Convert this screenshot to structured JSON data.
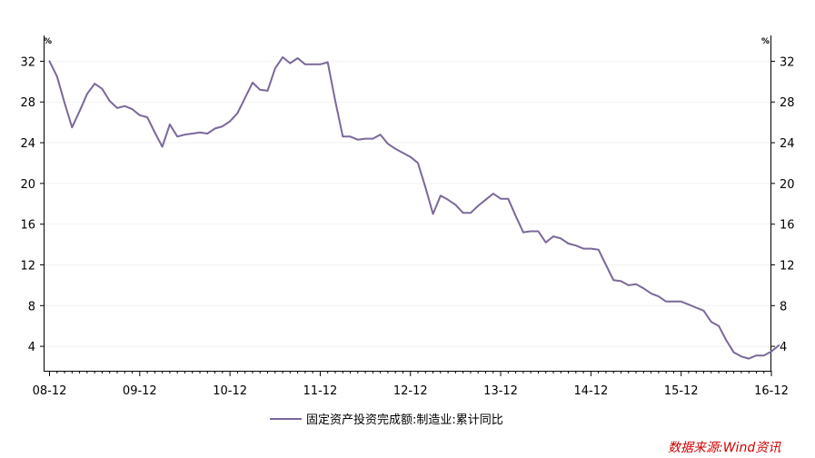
{
  "chart_data": {
    "type": "line",
    "y_unit_left": "%",
    "y_unit_right": "%",
    "ylim": [
      1.6,
      34
    ],
    "yticks": [
      4,
      8,
      12,
      16,
      20,
      24,
      28,
      32
    ],
    "xlim": [
      0,
      96
    ],
    "xticks": [
      {
        "pos": 0,
        "label": "08-12"
      },
      {
        "pos": 12,
        "label": "09-12"
      },
      {
        "pos": 24,
        "label": "10-12"
      },
      {
        "pos": 36,
        "label": "11-12"
      },
      {
        "pos": 48,
        "label": "12-12"
      },
      {
        "pos": 60,
        "label": "13-12"
      },
      {
        "pos": 72,
        "label": "14-12"
      },
      {
        "pos": 84,
        "label": "15-12"
      },
      {
        "pos": 96,
        "label": "16-12"
      }
    ],
    "grid": false,
    "legend": "bottom-center",
    "series": [
      {
        "name": "固定资产投资完成额:制造业:累计同比",
        "color": "#7b689a",
        "values": [
          [
            0,
            32.0
          ],
          [
            1,
            30.5
          ],
          [
            2,
            27.9
          ],
          [
            3,
            25.5
          ],
          [
            4,
            27.1
          ],
          [
            5,
            28.8
          ],
          [
            6,
            29.8
          ],
          [
            7,
            29.3
          ],
          [
            8,
            28.1
          ],
          [
            9,
            27.4
          ],
          [
            10,
            27.6
          ],
          [
            11,
            27.3
          ],
          [
            12,
            26.7
          ],
          [
            13,
            26.5
          ],
          [
            14,
            25.0
          ],
          [
            15,
            23.6
          ],
          [
            16,
            25.8
          ],
          [
            17,
            24.6
          ],
          [
            18,
            24.8
          ],
          [
            19,
            24.9
          ],
          [
            20,
            25.0
          ],
          [
            21,
            24.9
          ],
          [
            22,
            25.4
          ],
          [
            23,
            25.6
          ],
          [
            24,
            26.1
          ],
          [
            25,
            26.9
          ],
          [
            26,
            28.4
          ],
          [
            27,
            29.9
          ],
          [
            28,
            29.2
          ],
          [
            29,
            29.1
          ],
          [
            30,
            31.3
          ],
          [
            31,
            32.4
          ],
          [
            32,
            31.8
          ],
          [
            33,
            32.3
          ],
          [
            34,
            31.7
          ],
          [
            35,
            31.7
          ],
          [
            36,
            31.7
          ],
          [
            37,
            31.9
          ],
          [
            38,
            28.1
          ],
          [
            39,
            24.6
          ],
          [
            40,
            24.6
          ],
          [
            41,
            24.3
          ],
          [
            42,
            24.4
          ],
          [
            43,
            24.4
          ],
          [
            44,
            24.8
          ],
          [
            45,
            23.9
          ],
          [
            46,
            23.4
          ],
          [
            47,
            23.0
          ],
          [
            48,
            22.6
          ],
          [
            49,
            22.0
          ],
          [
            50,
            19.6
          ],
          [
            51,
            17.0
          ],
          [
            52,
            18.8
          ],
          [
            53,
            18.4
          ],
          [
            54,
            17.9
          ],
          [
            55,
            17.1
          ],
          [
            56,
            17.1
          ],
          [
            57,
            17.8
          ],
          [
            58,
            18.4
          ],
          [
            59,
            19.0
          ],
          [
            60,
            18.5
          ],
          [
            61,
            18.5
          ],
          [
            62,
            16.8
          ],
          [
            63,
            15.2
          ],
          [
            64,
            15.3
          ],
          [
            65,
            15.3
          ],
          [
            66,
            14.2
          ],
          [
            67,
            14.8
          ],
          [
            68,
            14.6
          ],
          [
            69,
            14.1
          ],
          [
            70,
            13.9
          ],
          [
            71,
            13.6
          ],
          [
            72,
            13.6
          ],
          [
            73,
            13.5
          ],
          [
            74,
            12.0
          ],
          [
            75,
            10.5
          ],
          [
            76,
            10.4
          ],
          [
            77,
            10.0
          ],
          [
            78,
            10.1
          ],
          [
            79,
            9.7
          ],
          [
            80,
            9.2
          ],
          [
            81,
            8.9
          ],
          [
            82,
            8.4
          ],
          [
            83,
            8.4
          ],
          [
            84,
            8.4
          ],
          [
            85,
            8.1
          ],
          [
            86,
            7.8
          ],
          [
            87,
            7.5
          ],
          [
            88,
            6.4
          ],
          [
            89,
            6.0
          ],
          [
            90,
            4.6
          ],
          [
            91,
            3.4
          ],
          [
            92,
            3.0
          ],
          [
            93,
            2.8
          ],
          [
            94,
            3.1
          ],
          [
            95,
            3.1
          ],
          [
            96,
            3.5
          ],
          [
            97,
            4.1
          ]
        ]
      }
    ]
  },
  "legend": {
    "series_label": "固定资产投资完成额:制造业:累计同比"
  },
  "source": {
    "text": "数据来源:Wind资讯"
  }
}
